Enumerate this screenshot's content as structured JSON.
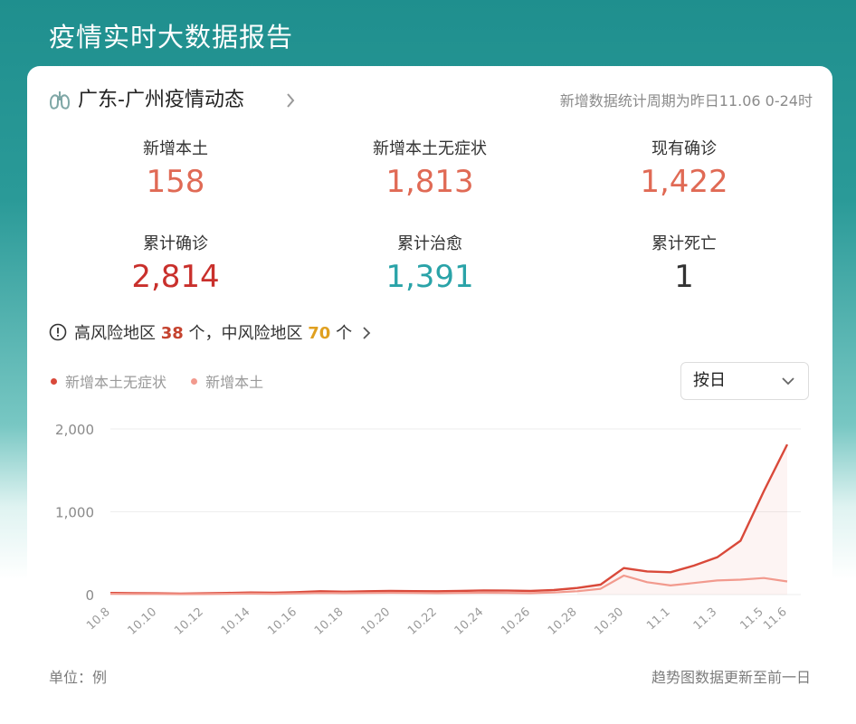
{
  "header": {
    "title": "疫情实时大数据报告"
  },
  "region": {
    "title": "广东-广州疫情动态",
    "period_note": "新增数据统计周期为昨日11.06 0-24时"
  },
  "stats": [
    {
      "label": "新增本土",
      "value": "158",
      "color": "#e06a55"
    },
    {
      "label": "新增本土无症状",
      "value": "1,813",
      "color": "#e06a55"
    },
    {
      "label": "现有确诊",
      "value": "1,422",
      "color": "#e06a55"
    },
    {
      "label": "累计确诊",
      "value": "2,814",
      "color": "#c9302c"
    },
    {
      "label": "累计治愈",
      "value": "1,391",
      "color": "#2aa3a8"
    },
    {
      "label": "累计死亡",
      "value": "1",
      "color": "#333333"
    }
  ],
  "risk": {
    "prefix": "高风险地区",
    "high_count": "38",
    "middle_text": "个，中风险地区",
    "mid_count": "70",
    "suffix": "个"
  },
  "legend": [
    {
      "label": "新增本土无症状",
      "color": "#d9493a"
    },
    {
      "label": "新增本土",
      "color": "#f29a8e"
    }
  ],
  "select": {
    "value": "按日"
  },
  "chart_data": {
    "type": "line",
    "x": [
      "10.8",
      "10.9",
      "10.10",
      "10.11",
      "10.12",
      "10.13",
      "10.14",
      "10.15",
      "10.16",
      "10.17",
      "10.18",
      "10.19",
      "10.20",
      "10.21",
      "10.22",
      "10.23",
      "10.24",
      "10.25",
      "10.26",
      "10.27",
      "10.28",
      "10.29",
      "10.30",
      "10.31",
      "11.1",
      "11.2",
      "11.3",
      "11.4",
      "11.5",
      "11.6"
    ],
    "tick_labels": [
      "10.8",
      "10.10",
      "10.12",
      "10.14",
      "10.16",
      "10.18",
      "10.20",
      "10.22",
      "10.24",
      "10.26",
      "10.28",
      "10.30",
      "11.1",
      "11.3",
      "11.5",
      "11.6"
    ],
    "y_ticks": [
      "0",
      "1,000",
      "2,000"
    ],
    "ylim": [
      0,
      2000
    ],
    "series": [
      {
        "name": "新增本土无症状",
        "color": "#d9493a",
        "values": [
          20,
          18,
          15,
          12,
          15,
          20,
          25,
          22,
          30,
          40,
          35,
          40,
          45,
          42,
          40,
          45,
          50,
          48,
          45,
          55,
          80,
          120,
          320,
          280,
          270,
          350,
          450,
          650,
          1250,
          1813
        ]
      },
      {
        "name": "新增本土",
        "color": "#f29a8e",
        "values": [
          10,
          8,
          8,
          6,
          7,
          10,
          12,
          10,
          14,
          20,
          18,
          20,
          22,
          20,
          18,
          20,
          22,
          20,
          18,
          25,
          40,
          70,
          230,
          150,
          110,
          140,
          170,
          180,
          200,
          158
        ]
      }
    ],
    "grid": true
  },
  "footer": {
    "unit": "单位：例",
    "note": "趋势图数据更新至前一日"
  }
}
